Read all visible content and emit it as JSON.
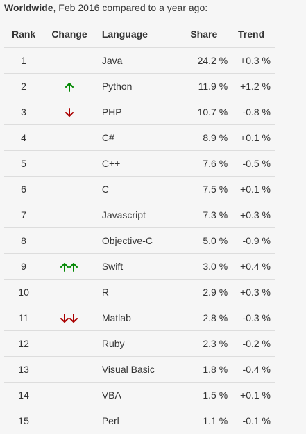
{
  "heading": {
    "bold": "Worldwide",
    "rest": ", Feb 2016 compared to a year ago:"
  },
  "columns": [
    "Rank",
    "Change",
    "Language",
    "Share",
    "Trend"
  ],
  "colors": {
    "up": "#008800",
    "down": "#aa0000"
  },
  "rows": [
    {
      "rank": "1",
      "change": "",
      "language": "Java",
      "share": "24.2 %",
      "trend": "+0.3 %"
    },
    {
      "rank": "2",
      "change": "up",
      "language": "Python",
      "share": "11.9 %",
      "trend": "+1.2 %"
    },
    {
      "rank": "3",
      "change": "down",
      "language": "PHP",
      "share": "10.7 %",
      "trend": "-0.8 %"
    },
    {
      "rank": "4",
      "change": "",
      "language": "C#",
      "share": "8.9 %",
      "trend": "+0.1 %"
    },
    {
      "rank": "5",
      "change": "",
      "language": "C++",
      "share": "7.6 %",
      "trend": "-0.5 %"
    },
    {
      "rank": "6",
      "change": "",
      "language": "C",
      "share": "7.5 %",
      "trend": "+0.1 %"
    },
    {
      "rank": "7",
      "change": "",
      "language": "Javascript",
      "share": "7.3 %",
      "trend": "+0.3 %"
    },
    {
      "rank": "8",
      "change": "",
      "language": "Objective-C",
      "share": "5.0 %",
      "trend": "-0.9 %"
    },
    {
      "rank": "9",
      "change": "up-up",
      "language": "Swift",
      "share": "3.0 %",
      "trend": "+0.4 %"
    },
    {
      "rank": "10",
      "change": "",
      "language": "R",
      "share": "2.9 %",
      "trend": "+0.3 %"
    },
    {
      "rank": "11",
      "change": "down-down",
      "language": "Matlab",
      "share": "2.8 %",
      "trend": "-0.3 %"
    },
    {
      "rank": "12",
      "change": "",
      "language": "Ruby",
      "share": "2.3 %",
      "trend": "-0.2 %"
    },
    {
      "rank": "13",
      "change": "",
      "language": "Visual Basic",
      "share": "1.8 %",
      "trend": "-0.4 %"
    },
    {
      "rank": "14",
      "change": "",
      "language": "VBA",
      "share": "1.5 %",
      "trend": "+0.1 %"
    },
    {
      "rank": "15",
      "change": "",
      "language": "Perl",
      "share": "1.1 %",
      "trend": "-0.1 %"
    }
  ]
}
